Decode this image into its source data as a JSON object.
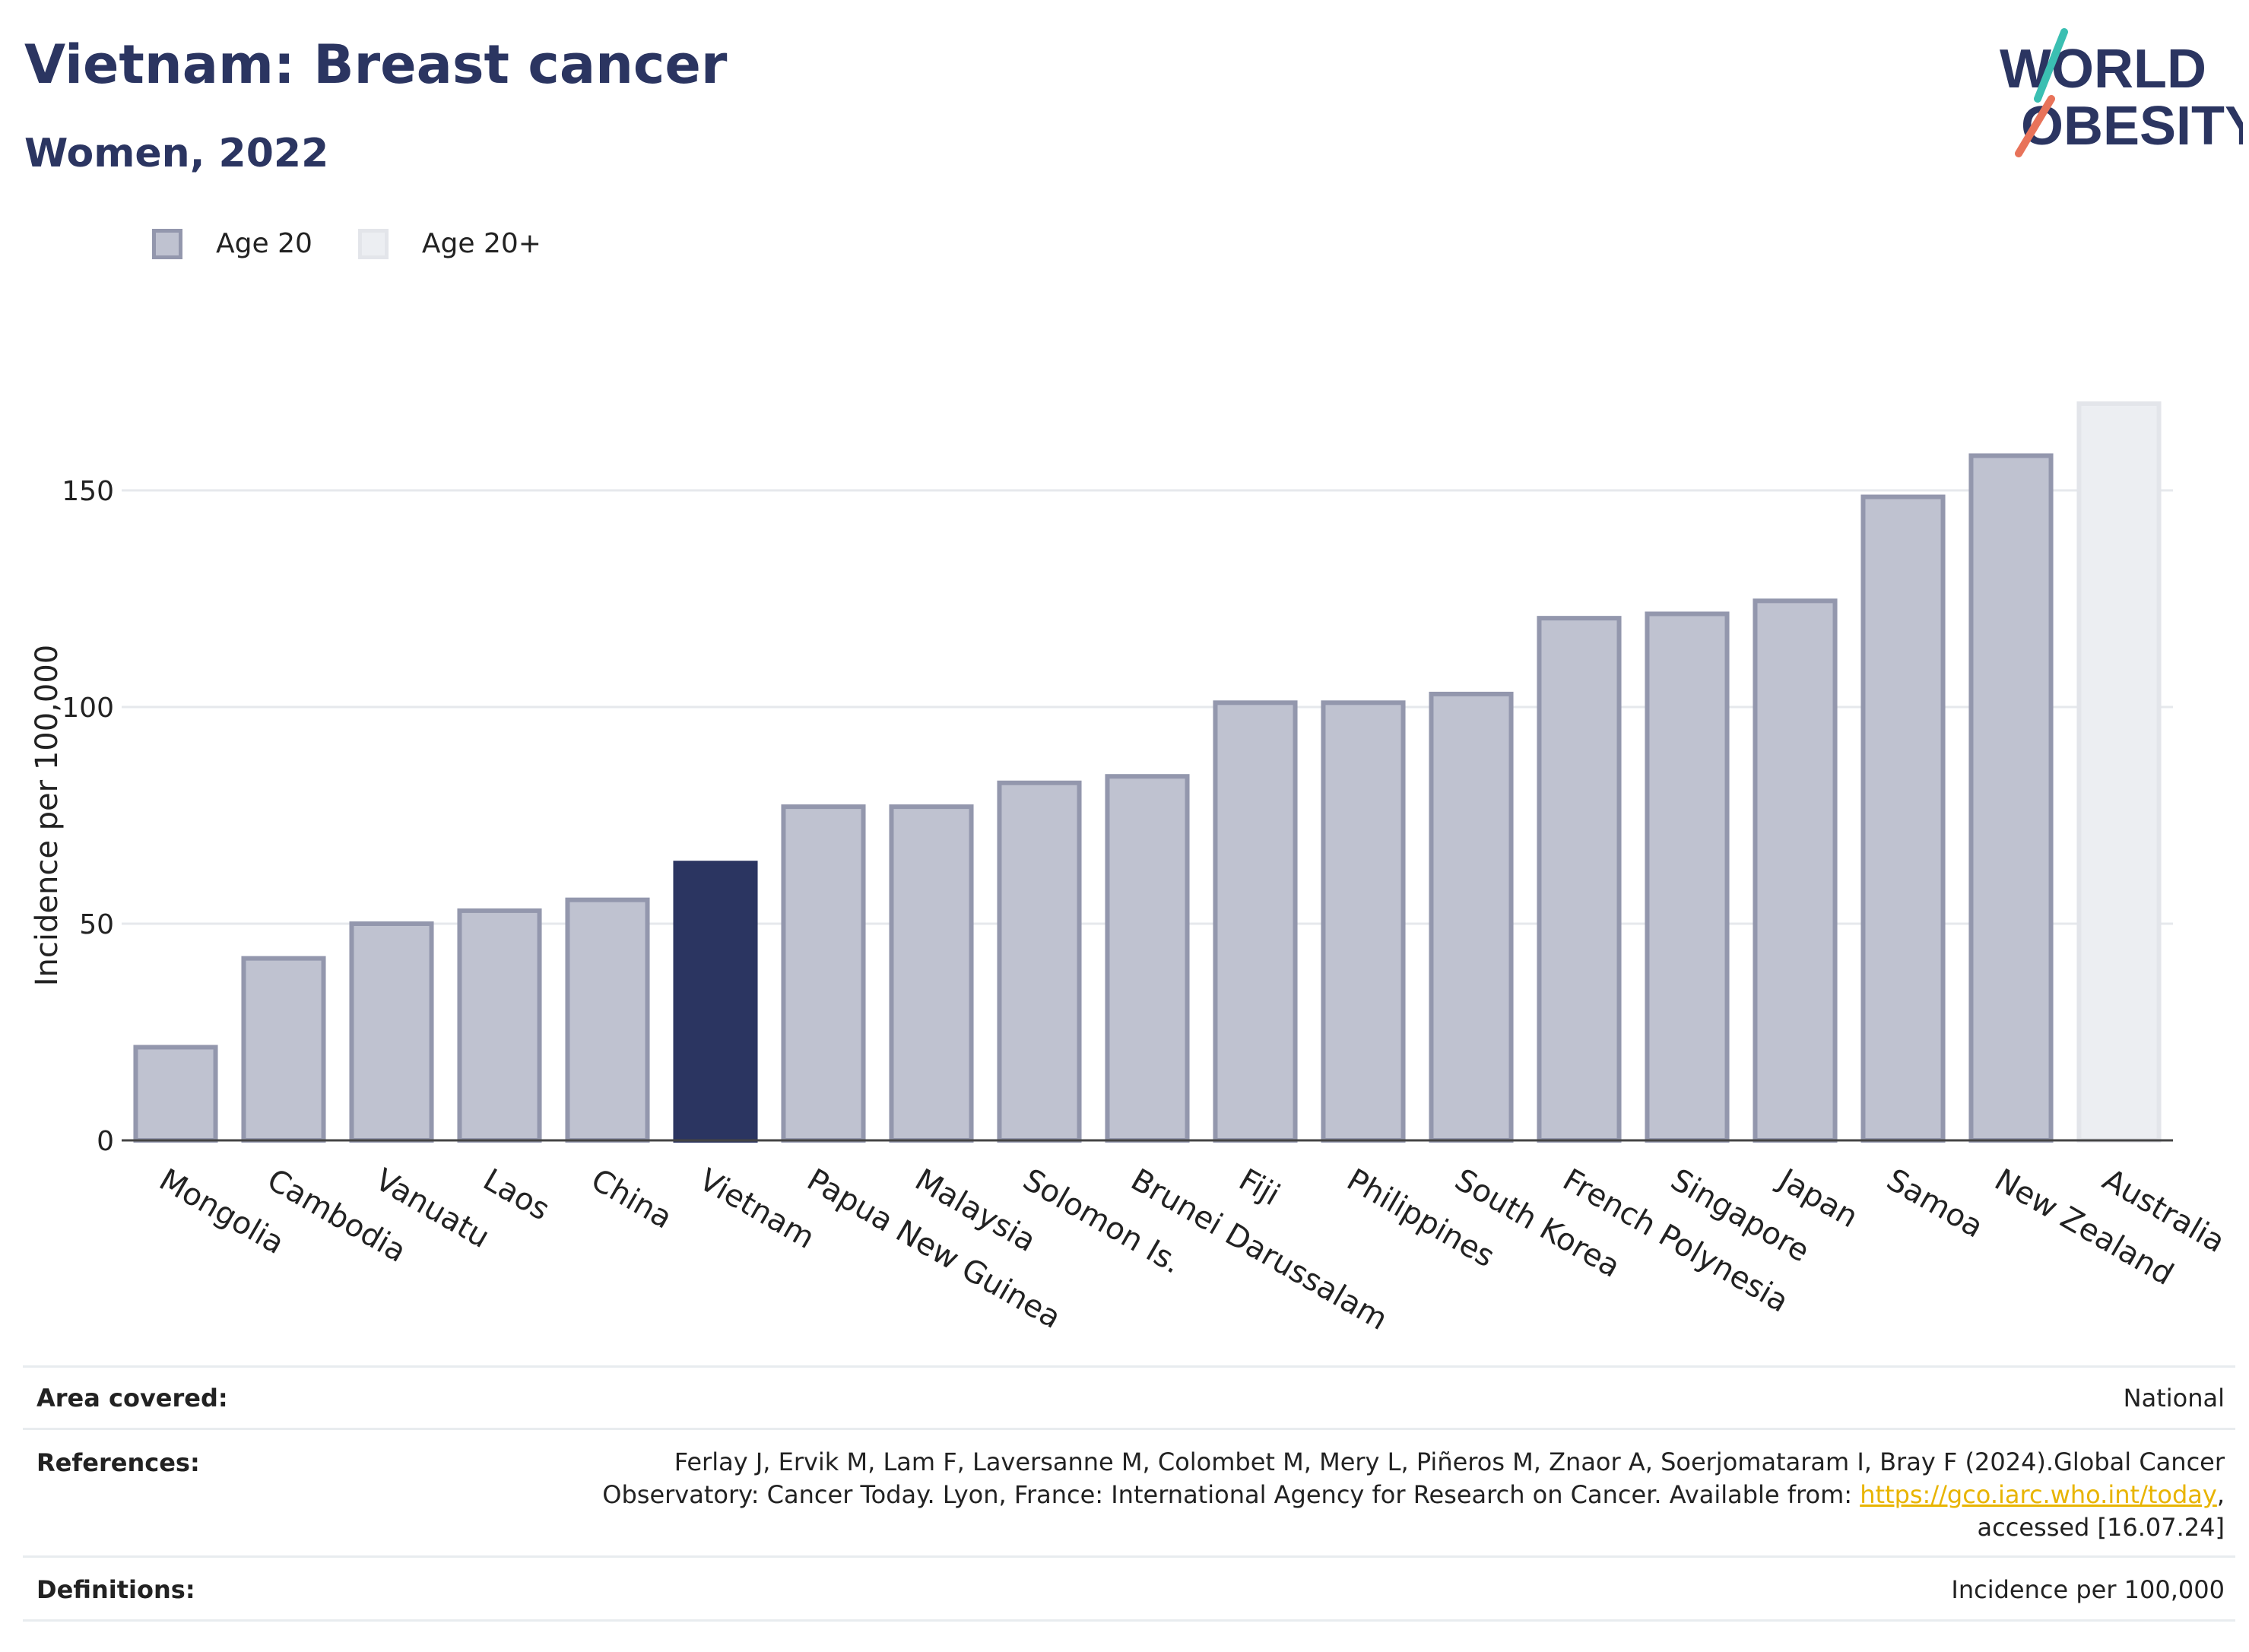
{
  "header": {
    "title": "Vietnam: Breast cancer",
    "subtitle": "Women, 2022"
  },
  "logo": {
    "line1": "WORLD",
    "line2": "OBESITY"
  },
  "legend": [
    {
      "label": "Age 20",
      "color": "#bfc2d0",
      "border": "#9397ad"
    },
    {
      "label": "Age 20+",
      "color": "#eceef2",
      "border": "#e3e5ea"
    }
  ],
  "colors": {
    "highlight": "#2b3561",
    "bar": "#bfc2d0",
    "bar_border": "#9397ad",
    "light": "#eceef2",
    "light_border": "#e3e5ea"
  },
  "chart_data": {
    "type": "bar",
    "ylabel": "Incidence per 100,000",
    "ylim": [
      0,
      175
    ],
    "yticks": [
      0,
      50,
      100,
      150
    ],
    "grid": true,
    "highlight": "Vietnam",
    "categories": [
      "Mongolia",
      "Cambodia",
      "Vanuatu",
      "Laos",
      "China",
      "Vietnam",
      "Papua New Guinea",
      "Malaysia",
      "Solomon Is.",
      "Brunei Darussalam",
      "Fiji",
      "Philippines",
      "South Korea",
      "French Polynesia",
      "Singapore",
      "Japan",
      "Samoa",
      "New Zealand",
      "Australia"
    ],
    "values": [
      21.5,
      42,
      50,
      53,
      55.5,
      64,
      77,
      77,
      82.5,
      84,
      101,
      101,
      103,
      120.5,
      121.5,
      124.5,
      148.5,
      158,
      170
    ],
    "series_group": [
      "Age 20",
      "Age 20",
      "Age 20",
      "Age 20",
      "Age 20",
      "Age 20",
      "Age 20",
      "Age 20",
      "Age 20",
      "Age 20",
      "Age 20",
      "Age 20",
      "Age 20",
      "Age 20",
      "Age 20",
      "Age 20",
      "Age 20",
      "Age 20",
      "Age 20+"
    ]
  },
  "meta": {
    "area_key": "Area covered:",
    "area_val": "National",
    "ref_key": "References:",
    "ref_line1": "Ferlay J, Ervik M, Lam F, Laversanne M, Colombet M, Mery L, Piñeros M, Znaor A, Soerjomataram I, Bray F (2024).Global Cancer",
    "ref_line2_pre": "Observatory: Cancer Today. Lyon, France: International Agency for Research on Cancer. Available from: ",
    "ref_link": "https://gco.iarc.who.int/today",
    "ref_line2_post": ",",
    "ref_line3": "accessed [16.07.24]",
    "def_key": "Definitions:",
    "def_val": "Incidence per 100,000"
  }
}
